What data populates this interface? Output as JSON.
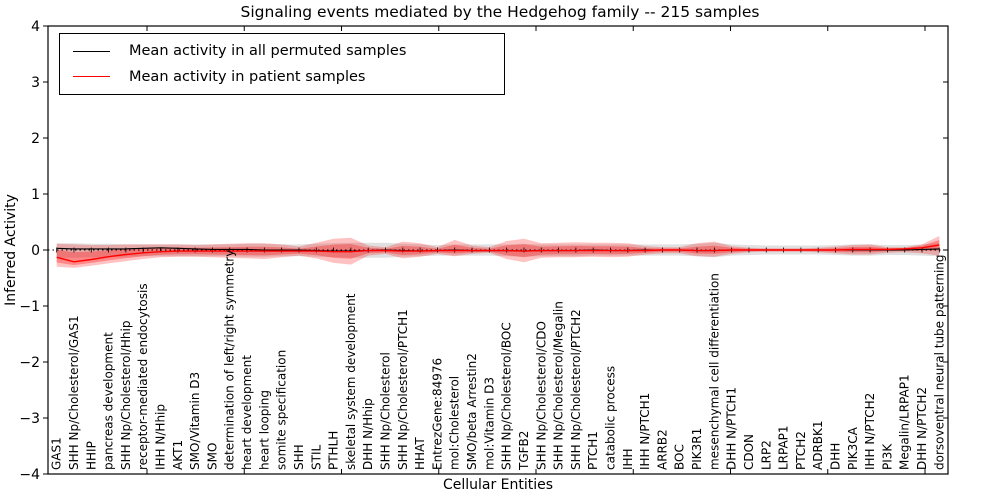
{
  "figure": {
    "title": "Signaling events mediated by the Hedgehog family -- 215 samples",
    "xlabel": "Cellular Entities",
    "ylabel": "Inferred Activity",
    "background": "#ffffff"
  },
  "legend": {
    "entries": [
      {
        "label": "Mean activity in all permuted samples",
        "color": "#000000"
      },
      {
        "label": "Mean activity in patient samples",
        "color": "#ff0000"
      }
    ]
  },
  "chart_data": {
    "type": "line",
    "title": "Signaling events mediated by the Hedgehog family -- 215 samples",
    "xlabel": "Cellular Entities",
    "ylabel": "Inferred Activity",
    "ylim": [
      -4,
      4
    ],
    "ytick_values": [
      4,
      3,
      2,
      1,
      0,
      -1,
      -2,
      -3,
      -4
    ],
    "ytick_labels": [
      "4",
      "3",
      "2",
      "1",
      "0",
      "−1",
      "−2",
      "−3",
      "−4"
    ],
    "grid": false,
    "legend_position": "upper left",
    "zero_line": true,
    "colors": {
      "permuted_line": "#000000",
      "patient_line": "#ff0000",
      "permuted_band": "rgba(0,0,0,0.12)",
      "patient_band": "rgba(255,0,0,0.24)",
      "patient_band_inner": "rgba(255,0,0,0.30)"
    },
    "categories": [
      "GAS1",
      "SHH Np/Cholesterol/GAS1",
      "HHIP",
      "pancreas development",
      "SHH Np/Cholesterol/Hhip",
      "receptor-mediated endocytosis",
      "IHH N/Hhip",
      "AKT1",
      "SMO/Vitamin D3",
      "SMO",
      "determination of left/right symmetry",
      "heart development",
      "heart looping",
      "somite specification",
      "SHH",
      "STIL",
      "PTHLH",
      "skeletal system development",
      "DHH N/Hhip",
      "SHH Np/Cholesterol",
      "SHH Np/Cholesterol/PTCH1",
      "HHAT",
      "EntrezGene:84976",
      "mol:Cholesterol",
      "SMO/beta Arrestin2",
      "mol:Vitamin D3",
      "SHH Np/Cholesterol/BOC",
      "TGFB2",
      "SHH Np/Cholesterol/CDO",
      "SHH Np/Cholesterol/Megalin",
      "SHH Np/Cholesterol/PTCH2",
      "PTCH1",
      "catabolic process",
      "IHH",
      "IHH N/PTCH1",
      "ARRB2",
      "BOC",
      "PIK3R1",
      "mesenchymal cell differentiation",
      "DHH N/PTCH1",
      "CDON",
      "LRP2",
      "LRPAP1",
      "PTCH2",
      "ADRBK1",
      "DHH",
      "PIK3CA",
      "IHH N/PTCH2",
      "PI3K",
      "Megalin/LRPAP1",
      "DHH N/PTCH2",
      "dorsoventral neural tube patterning"
    ],
    "series": [
      {
        "name": "Mean activity in all permuted samples",
        "color": "#000000",
        "values": [
          0.03,
          0.02,
          0.02,
          0.02,
          0.02,
          0.03,
          0.04,
          0.03,
          0.02,
          0.01,
          0.01,
          0.01,
          0.0,
          0.0,
          0.0,
          -0.01,
          -0.02,
          -0.02,
          -0.01,
          0.0,
          -0.01,
          -0.02,
          -0.01,
          0.0,
          -0.01,
          -0.01,
          -0.01,
          -0.02,
          -0.01,
          -0.01,
          -0.01,
          0.0,
          -0.01,
          -0.01,
          0.0,
          0.0,
          0.0,
          -0.01,
          -0.01,
          0.0,
          0.0,
          0.0,
          0.0,
          0.0,
          0.0,
          0.0,
          0.0,
          0.0,
          0.0,
          0.0,
          0.01,
          0.02
        ]
      },
      {
        "name": "Mean activity in patient samples",
        "color": "#ff0000",
        "values": [
          -0.13,
          -0.21,
          -0.17,
          -0.12,
          -0.08,
          -0.05,
          -0.03,
          -0.02,
          -0.02,
          -0.02,
          -0.02,
          -0.02,
          -0.02,
          -0.02,
          -0.02,
          -0.02,
          -0.03,
          -0.03,
          -0.01,
          -0.01,
          -0.02,
          -0.02,
          -0.01,
          -0.01,
          -0.01,
          -0.01,
          -0.01,
          -0.02,
          -0.01,
          -0.01,
          -0.01,
          -0.01,
          -0.01,
          -0.01,
          -0.01,
          0.0,
          0.0,
          -0.01,
          -0.01,
          0.0,
          0.0,
          0.0,
          0.0,
          0.0,
          0.0,
          0.0,
          0.01,
          0.01,
          0.01,
          0.02,
          0.04,
          0.09
        ]
      }
    ],
    "bands": [
      {
        "name": "permuted-samples-range",
        "hi": [
          0.12,
          0.12,
          0.11,
          0.11,
          0.1,
          0.1,
          0.1,
          0.1,
          0.1,
          0.1,
          0.1,
          0.11,
          0.11,
          0.1,
          0.1,
          0.11,
          0.12,
          0.13,
          0.13,
          0.13,
          0.11,
          0.1,
          0.09,
          0.1,
          0.1,
          0.1,
          0.1,
          0.11,
          0.1,
          0.1,
          0.1,
          0.1,
          0.1,
          0.1,
          0.1,
          0.1,
          0.1,
          0.11,
          0.13,
          0.1,
          0.09,
          0.08,
          0.08,
          0.08,
          0.08,
          0.09,
          0.1,
          0.1,
          0.09,
          0.09,
          0.1,
          0.12
        ],
        "lo": [
          -0.14,
          -0.14,
          -0.13,
          -0.12,
          -0.12,
          -0.11,
          -0.11,
          -0.11,
          -0.11,
          -0.11,
          -0.11,
          -0.12,
          -0.12,
          -0.11,
          -0.11,
          -0.12,
          -0.13,
          -0.14,
          -0.14,
          -0.14,
          -0.12,
          -0.11,
          -0.1,
          -0.1,
          -0.1,
          -0.1,
          -0.11,
          -0.12,
          -0.11,
          -0.11,
          -0.11,
          -0.1,
          -0.1,
          -0.1,
          -0.1,
          -0.1,
          -0.1,
          -0.11,
          -0.13,
          -0.1,
          -0.09,
          -0.08,
          -0.08,
          -0.08,
          -0.08,
          -0.09,
          -0.1,
          -0.1,
          -0.09,
          -0.09,
          -0.1,
          -0.11
        ]
      },
      {
        "name": "patient-samples-range",
        "hi": [
          0.11,
          0.1,
          0.09,
          0.09,
          0.1,
          0.1,
          0.1,
          0.1,
          0.09,
          0.1,
          0.11,
          0.12,
          0.12,
          0.1,
          0.06,
          0.13,
          0.2,
          0.22,
          0.08,
          0.05,
          0.15,
          0.12,
          0.05,
          0.18,
          0.08,
          0.05,
          0.16,
          0.2,
          0.12,
          0.13,
          0.14,
          0.13,
          0.13,
          0.12,
          0.07,
          0.05,
          0.05,
          0.12,
          0.15,
          0.07,
          0.04,
          0.03,
          0.03,
          0.03,
          0.04,
          0.06,
          0.09,
          0.1,
          0.05,
          0.05,
          0.1,
          0.25
        ],
        "lo": [
          -0.3,
          -0.32,
          -0.28,
          -0.24,
          -0.2,
          -0.16,
          -0.13,
          -0.12,
          -0.12,
          -0.13,
          -0.14,
          -0.15,
          -0.16,
          -0.13,
          -0.1,
          -0.15,
          -0.23,
          -0.26,
          -0.1,
          -0.07,
          -0.15,
          -0.12,
          -0.07,
          -0.11,
          -0.07,
          -0.05,
          -0.16,
          -0.22,
          -0.14,
          -0.13,
          -0.13,
          -0.12,
          -0.13,
          -0.12,
          -0.08,
          -0.06,
          -0.06,
          -0.11,
          -0.12,
          -0.07,
          -0.04,
          -0.03,
          -0.03,
          -0.03,
          -0.04,
          -0.06,
          -0.08,
          -0.08,
          -0.05,
          -0.04,
          -0.06,
          -0.1
        ],
        "inner_scale": 0.55
      }
    ]
  }
}
